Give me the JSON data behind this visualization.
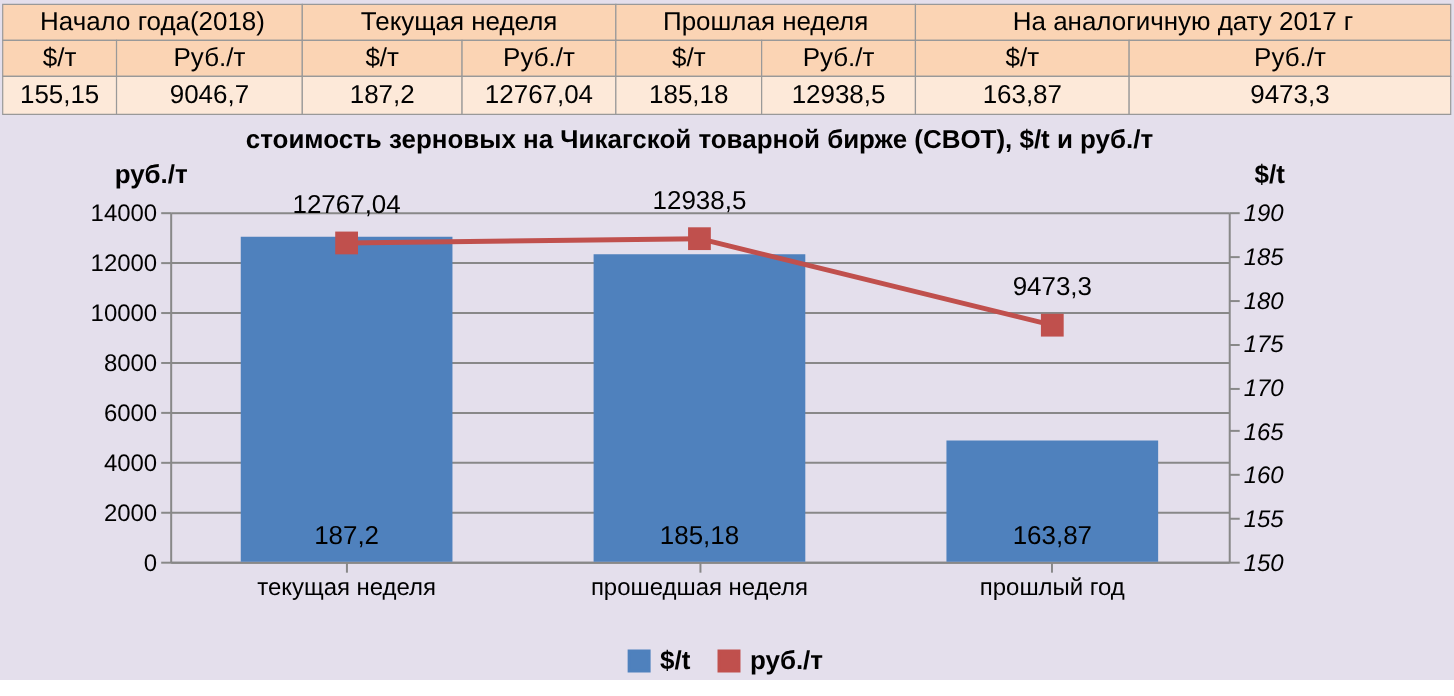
{
  "chart_data": {
    "type": "bar",
    "title": "стоимость зерновых на Чикагской товарной бирже (CBOT), $/t и руб./т",
    "categories": [
      "текущая неделя",
      "прошедшая неделя",
      "прошлый год"
    ],
    "series": [
      {
        "name": "$/t",
        "type": "bar",
        "axis": "y2",
        "color": "#4f81bd",
        "values": [
          187.2,
          185.18,
          163.87
        ],
        "value_labels": [
          "187,2",
          "185,18",
          "163,87"
        ]
      },
      {
        "name": "руб./т",
        "type": "line",
        "color": "#c0504d",
        "marker": "square",
        "values": [
          12767.04,
          12938.5,
          9473.3
        ],
        "value_labels": [
          "12767,04",
          "12938,5",
          "9473,3"
        ]
      }
    ],
    "ylabel": "руб./т",
    "y2label": "$/t",
    "ylim": [
      0,
      14000
    ],
    "yticks": [
      0,
      2000,
      4000,
      6000,
      8000,
      10000,
      12000,
      14000
    ],
    "y2lim": [
      150,
      190
    ],
    "y2ticks": [
      150,
      155,
      160,
      165,
      170,
      175,
      180,
      185,
      190
    ],
    "grid": "y",
    "legend": "bottom",
    "annotations": [
      "Начало года(2018)",
      "Текущая неделя",
      "Прошлая неделя",
      "На аналогичную дату 2017 г",
      "$/т",
      "Руб./т",
      "$/т",
      "Руб./т",
      "$/т",
      "Руб./т",
      "$/т",
      "Руб./т",
      "155,15",
      "9046,7",
      "187,2",
      "12767,04",
      "185,18",
      "12938,5",
      "163,87",
      "9473,3"
    ]
  }
}
